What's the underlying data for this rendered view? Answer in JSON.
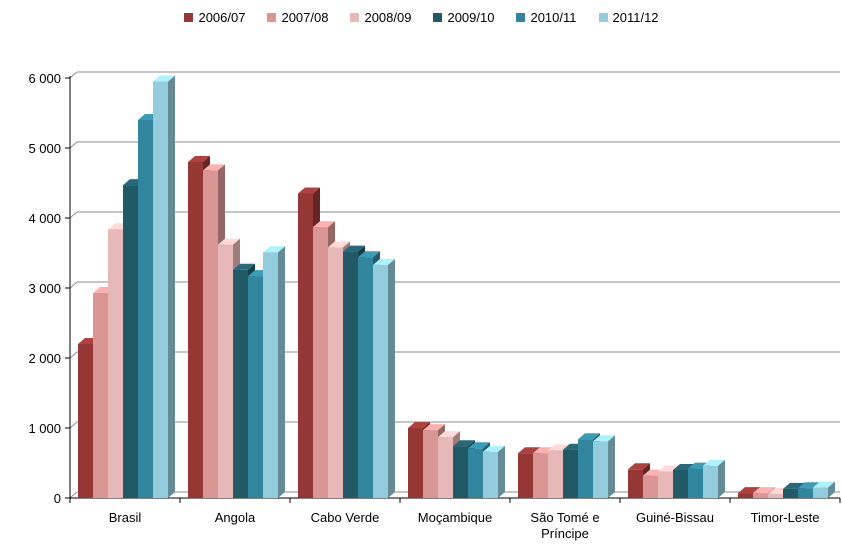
{
  "chart_data": {
    "type": "bar",
    "title": "",
    "xlabel": "",
    "ylabel": "",
    "legend_position": "top",
    "grid": true,
    "ylim": [
      0,
      6000
    ],
    "y_ticks": [
      "0",
      "1 000",
      "2 000",
      "3 000",
      "4 000",
      "5 000",
      "6 000"
    ],
    "categories": [
      "Brasil",
      "Angola",
      "Cabo Verde",
      "Moçambique",
      "São Tomé e Príncipe",
      "Guiné-Bissau",
      "Timor-Leste"
    ],
    "category_label_lines": [
      [
        "Brasil"
      ],
      [
        "Angola"
      ],
      [
        "Cabo Verde"
      ],
      [
        "Moçambique"
      ],
      [
        "São Tomé e",
        "Príncipe"
      ],
      [
        "Guiné-Bissau"
      ],
      [
        "Timor-Leste"
      ]
    ],
    "series": [
      {
        "name": "2006/07",
        "color": "#953735",
        "values": [
          2200,
          4800,
          4350,
          1000,
          640,
          410,
          70
        ]
      },
      {
        "name": "2007/08",
        "color": "#D99694",
        "values": [
          2930,
          4680,
          3870,
          970,
          640,
          320,
          70
        ]
      },
      {
        "name": "2008/09",
        "color": "#E6B9B8",
        "values": [
          3840,
          3620,
          3580,
          870,
          680,
          380,
          60
        ]
      },
      {
        "name": "2009/10",
        "color": "#215967",
        "values": [
          4470,
          3260,
          3520,
          740,
          690,
          400,
          130
        ]
      },
      {
        "name": "2010/11",
        "color": "#31859C",
        "values": [
          5400,
          3170,
          3440,
          710,
          840,
          420,
          140
        ]
      },
      {
        "name": "2011/12",
        "color": "#93CDDD",
        "values": [
          5950,
          3510,
          3330,
          660,
          810,
          460,
          150
        ]
      }
    ]
  }
}
